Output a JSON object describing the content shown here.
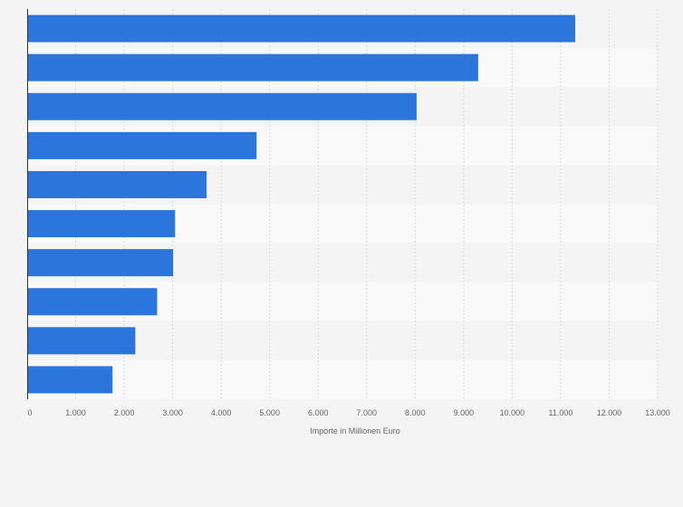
{
  "chart_data": {
    "type": "bar",
    "orientation": "horizontal",
    "categories": [
      "",
      "",
      "",
      "",
      "",
      "",
      "",
      "",
      "",
      ""
    ],
    "values": [
      11300,
      9300,
      8030,
      4730,
      3700,
      3050,
      3010,
      2680,
      2230,
      1760
    ],
    "xlabel": "Importe in Millionen Euro",
    "xlim": [
      0,
      13000
    ],
    "ticks": [
      "0",
      "1.000",
      "2.000",
      "3.000",
      "4.000",
      "5.000",
      "6.000",
      "7.000",
      "8.000",
      "9.000",
      "10.000",
      "11.000",
      "12.000",
      "13.000"
    ],
    "grid": true,
    "bar_color": "#2a76dd",
    "band_colors": [
      "#f4f4f4",
      "#f9f9f9"
    ]
  }
}
